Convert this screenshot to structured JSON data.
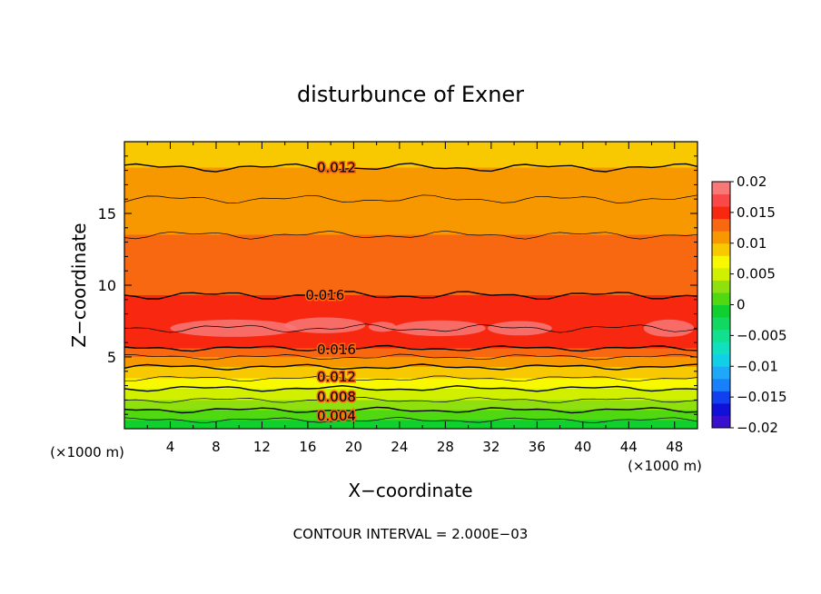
{
  "chart_data": {
    "type": "heatmap",
    "title": "disturbunce of Exner",
    "xlabel": "X−coordinate",
    "ylabel": "Z−coordinate",
    "x_unit": "(×1000 m)",
    "y_unit": "(×1000 m)",
    "footer": "CONTOUR INTERVAL = 2.000E−03",
    "xlim": [
      0,
      50
    ],
    "ylim": [
      0,
      20
    ],
    "x_ticks": [
      4,
      8,
      12,
      16,
      20,
      24,
      28,
      32,
      36,
      40,
      44,
      48
    ],
    "y_ticks": [
      5,
      10,
      15
    ],
    "contour_interval": 0.002,
    "colorbar": {
      "ticks": [
        "0.02",
        "0.015",
        "0.01",
        "0.005",
        "0",
        "−0.005",
        "−0.01",
        "−0.015",
        "−0.02"
      ],
      "levels": [
        {
          "v": -0.02,
          "color": "#7a10c8"
        },
        {
          "v": -0.018,
          "color": "#3a10d0"
        },
        {
          "v": -0.016,
          "color": "#1010d8"
        },
        {
          "v": -0.014,
          "color": "#1040f0"
        },
        {
          "v": -0.012,
          "color": "#1880f8"
        },
        {
          "v": -0.01,
          "color": "#20a8f8"
        },
        {
          "v": -0.008,
          "color": "#10d0e8"
        },
        {
          "v": -0.006,
          "color": "#10e0c0"
        },
        {
          "v": -0.004,
          "color": "#10e090"
        },
        {
          "v": -0.002,
          "color": "#10d860"
        },
        {
          "v": 0.0,
          "color": "#10d030"
        },
        {
          "v": 0.002,
          "color": "#50d810"
        },
        {
          "v": 0.004,
          "color": "#90e010"
        },
        {
          "v": 0.006,
          "color": "#d0f000"
        },
        {
          "v": 0.008,
          "color": "#f8f800"
        },
        {
          "v": 0.01,
          "color": "#f8c800"
        },
        {
          "v": 0.012,
          "color": "#f89800"
        },
        {
          "v": 0.014,
          "color": "#f86810"
        },
        {
          "v": 0.016,
          "color": "#f82810"
        },
        {
          "v": 0.018,
          "color": "#f84848"
        },
        {
          "v": 0.02,
          "color": "#f87878"
        }
      ]
    },
    "profile": [
      {
        "z": 0.0,
        "v": 0.0
      },
      {
        "z": 0.6,
        "v": 0.002
      },
      {
        "z": 1.3,
        "v": 0.004
      },
      {
        "z": 2.0,
        "v": 0.006
      },
      {
        "z": 2.8,
        "v": 0.008
      },
      {
        "z": 3.5,
        "v": 0.01
      },
      {
        "z": 4.3,
        "v": 0.012
      },
      {
        "z": 5.0,
        "v": 0.014
      },
      {
        "z": 5.6,
        "v": 0.016
      },
      {
        "z": 7.0,
        "v": 0.018
      },
      {
        "z": 9.3,
        "v": 0.016
      },
      {
        "z": 13.5,
        "v": 0.014
      },
      {
        "z": 16.0,
        "v": 0.013
      },
      {
        "z": 18.2,
        "v": 0.012
      },
      {
        "z": 20.0,
        "v": 0.011
      }
    ],
    "contour_labels": [
      {
        "text": "0.012",
        "x": 18.5,
        "z": 18.2
      },
      {
        "text": "0.016",
        "x": 17.5,
        "z": 9.3
      },
      {
        "text": "0.016",
        "x": 18.5,
        "z": 5.5
      },
      {
        "text": "0.012",
        "x": 18.5,
        "z": 3.6
      },
      {
        "text": "0.008",
        "x": 18.5,
        "z": 2.2
      },
      {
        "text": "0.004",
        "x": 18.5,
        "z": 0.9
      }
    ]
  }
}
